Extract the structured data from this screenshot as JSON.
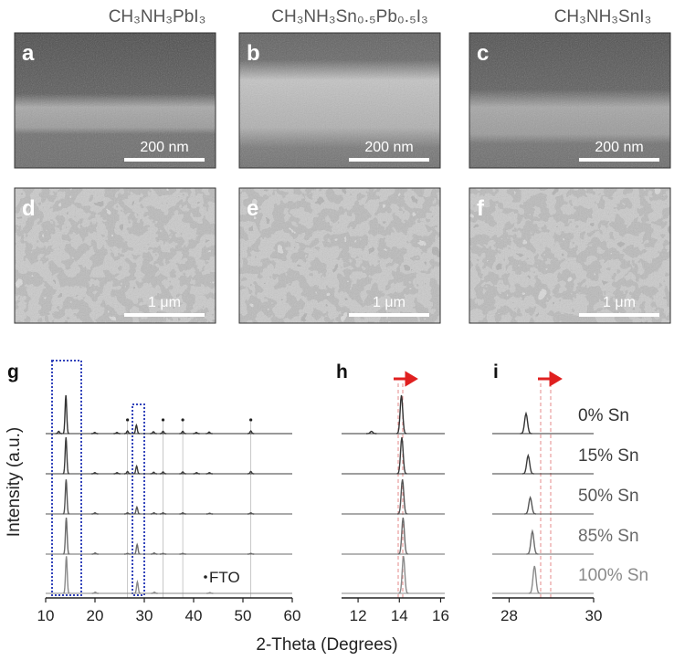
{
  "compositions": [
    "CH₃NH₃PbI₃",
    "CH₃NH₃Sn₀.₅Pb₀.₅I₃",
    "CH₃NH₃SnI₃"
  ],
  "panels": [
    {
      "letter": "a",
      "scale_bar": "200 nm"
    },
    {
      "letter": "b",
      "scale_bar": "200 nm"
    },
    {
      "letter": "c",
      "scale_bar": "200 nm"
    },
    {
      "letter": "d",
      "scale_bar": "1 μm"
    },
    {
      "letter": "e",
      "scale_bar": "1 μm"
    },
    {
      "letter": "f",
      "scale_bar": "1 μm"
    }
  ],
  "chart_data": {
    "type": "line",
    "label": "g",
    "x_label": "2-Theta (Degrees)",
    "y_label": "Intensity (a.u.)",
    "xlim": [
      10,
      60
    ],
    "xticks": [
      10,
      20,
      30,
      40,
      50,
      60
    ],
    "fto_label": "FTO",
    "fto_x": [
      26.6,
      33.8,
      37.8,
      51.6
    ],
    "insets": [
      {
        "label": "h",
        "xlim": [
          11.2,
          16.2
        ],
        "xticks": [
          12,
          14,
          16
        ]
      },
      {
        "label": "i",
        "xlim": [
          27.6,
          30
        ],
        "xticks": [
          28,
          30
        ]
      }
    ],
    "series": [
      {
        "name": "0% Sn",
        "color": "#333333",
        "peak_x": [
          12.65,
          14.1,
          19.95,
          24.45,
          26.6,
          28.4,
          31.85,
          33.8,
          37.8,
          40.55,
          43.15,
          51.6
        ],
        "peak_heights": [
          0.06,
          1.0,
          0.03,
          0.03,
          0.07,
          0.22,
          0.05,
          0.06,
          0.06,
          0.03,
          0.04,
          0.07
        ]
      },
      {
        "name": "15% Sn",
        "color": "#3d3d3d",
        "peak_x": [
          14.12,
          19.97,
          24.47,
          26.6,
          28.45,
          31.9,
          33.8,
          37.8,
          40.6,
          43.2,
          51.6
        ],
        "peak_heights": [
          0.95,
          0.03,
          0.03,
          0.06,
          0.2,
          0.04,
          0.05,
          0.05,
          0.03,
          0.03,
          0.06
        ]
      },
      {
        "name": "50% Sn",
        "color": "#555555",
        "peak_x": [
          14.15,
          20.0,
          26.6,
          28.5,
          31.95,
          33.8,
          37.8,
          43.25,
          51.6
        ],
        "peak_heights": [
          0.9,
          0.03,
          0.03,
          0.18,
          0.03,
          0.03,
          0.03,
          0.02,
          0.03
        ]
      },
      {
        "name": "85% Sn",
        "color": "#6b6b6b",
        "peak_x": [
          14.18,
          20.03,
          26.6,
          28.55,
          32.0,
          33.8,
          37.8,
          51.6
        ],
        "peak_heights": [
          0.95,
          0.03,
          0.02,
          0.25,
          0.03,
          0.02,
          0.02,
          0.02
        ]
      },
      {
        "name": "100% Sn",
        "color": "#8a8a8a",
        "peak_x": [
          14.2,
          20.05,
          28.6,
          32.05,
          43.3
        ],
        "peak_heights": [
          0.97,
          0.03,
          0.3,
          0.03,
          0.02
        ]
      }
    ]
  }
}
